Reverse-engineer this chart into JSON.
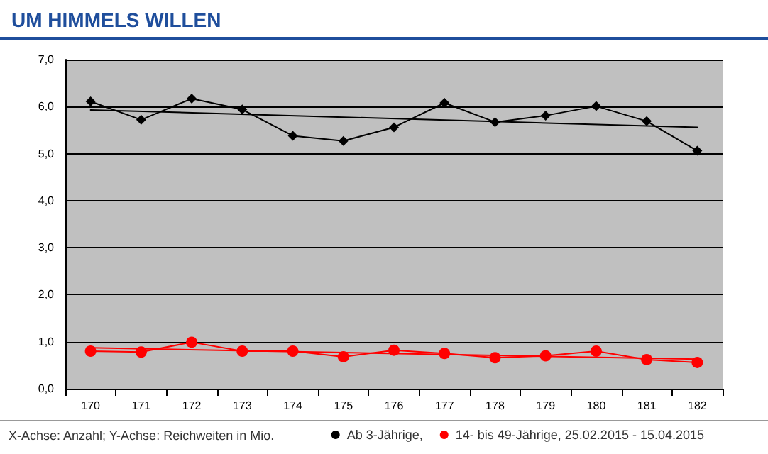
{
  "chart_data": {
    "type": "line",
    "title": "UM HIMMELS WILLEN",
    "categories": [
      "170",
      "171",
      "172",
      "173",
      "174",
      "175",
      "176",
      "177",
      "178",
      "179",
      "180",
      "181",
      "182"
    ],
    "series": [
      {
        "name": "Ab 3-Jährige,",
        "color": "#000000",
        "marker": "diamond",
        "values": [
          6.11,
          5.72,
          6.17,
          5.94,
          5.38,
          5.27,
          5.56,
          6.08,
          5.67,
          5.81,
          6.01,
          5.69,
          5.06
        ]
      },
      {
        "name": "14- bis 49-Jährige, 25.02.2015 - 15.04.2015",
        "color": "#ff0000",
        "marker": "circle",
        "values": [
          0.8,
          0.78,
          0.99,
          0.8,
          0.8,
          0.68,
          0.82,
          0.75,
          0.66,
          0.7,
          0.8,
          0.62,
          0.56
        ]
      },
      {
        "type": "line",
        "color": "#000000",
        "marker": "none",
        "x": [
          "170",
          "182"
        ],
        "values": [
          5.93,
          5.56
        ]
      },
      {
        "type": "line",
        "color": "#ff0000",
        "marker": "none",
        "x": [
          "170",
          "182"
        ],
        "values": [
          0.87,
          0.63
        ]
      }
    ],
    "ylim": [
      0,
      7
    ],
    "yticks": [
      {
        "value": 0,
        "label": "0,0"
      },
      {
        "value": 1,
        "label": "1,0"
      },
      {
        "value": 2,
        "label": "2,0"
      },
      {
        "value": 3,
        "label": "3,0"
      },
      {
        "value": 4,
        "label": "4,0"
      },
      {
        "value": 5,
        "label": "5,0"
      },
      {
        "value": 6,
        "label": "6,0"
      },
      {
        "value": 7,
        "label": "7,0"
      }
    ],
    "grid": "y",
    "legend": "bottom right",
    "line_style": "solid",
    "annotations": [
      "X-Achse: Anzahl; Y-Achse: Reichweiten in Mio."
    ]
  }
}
